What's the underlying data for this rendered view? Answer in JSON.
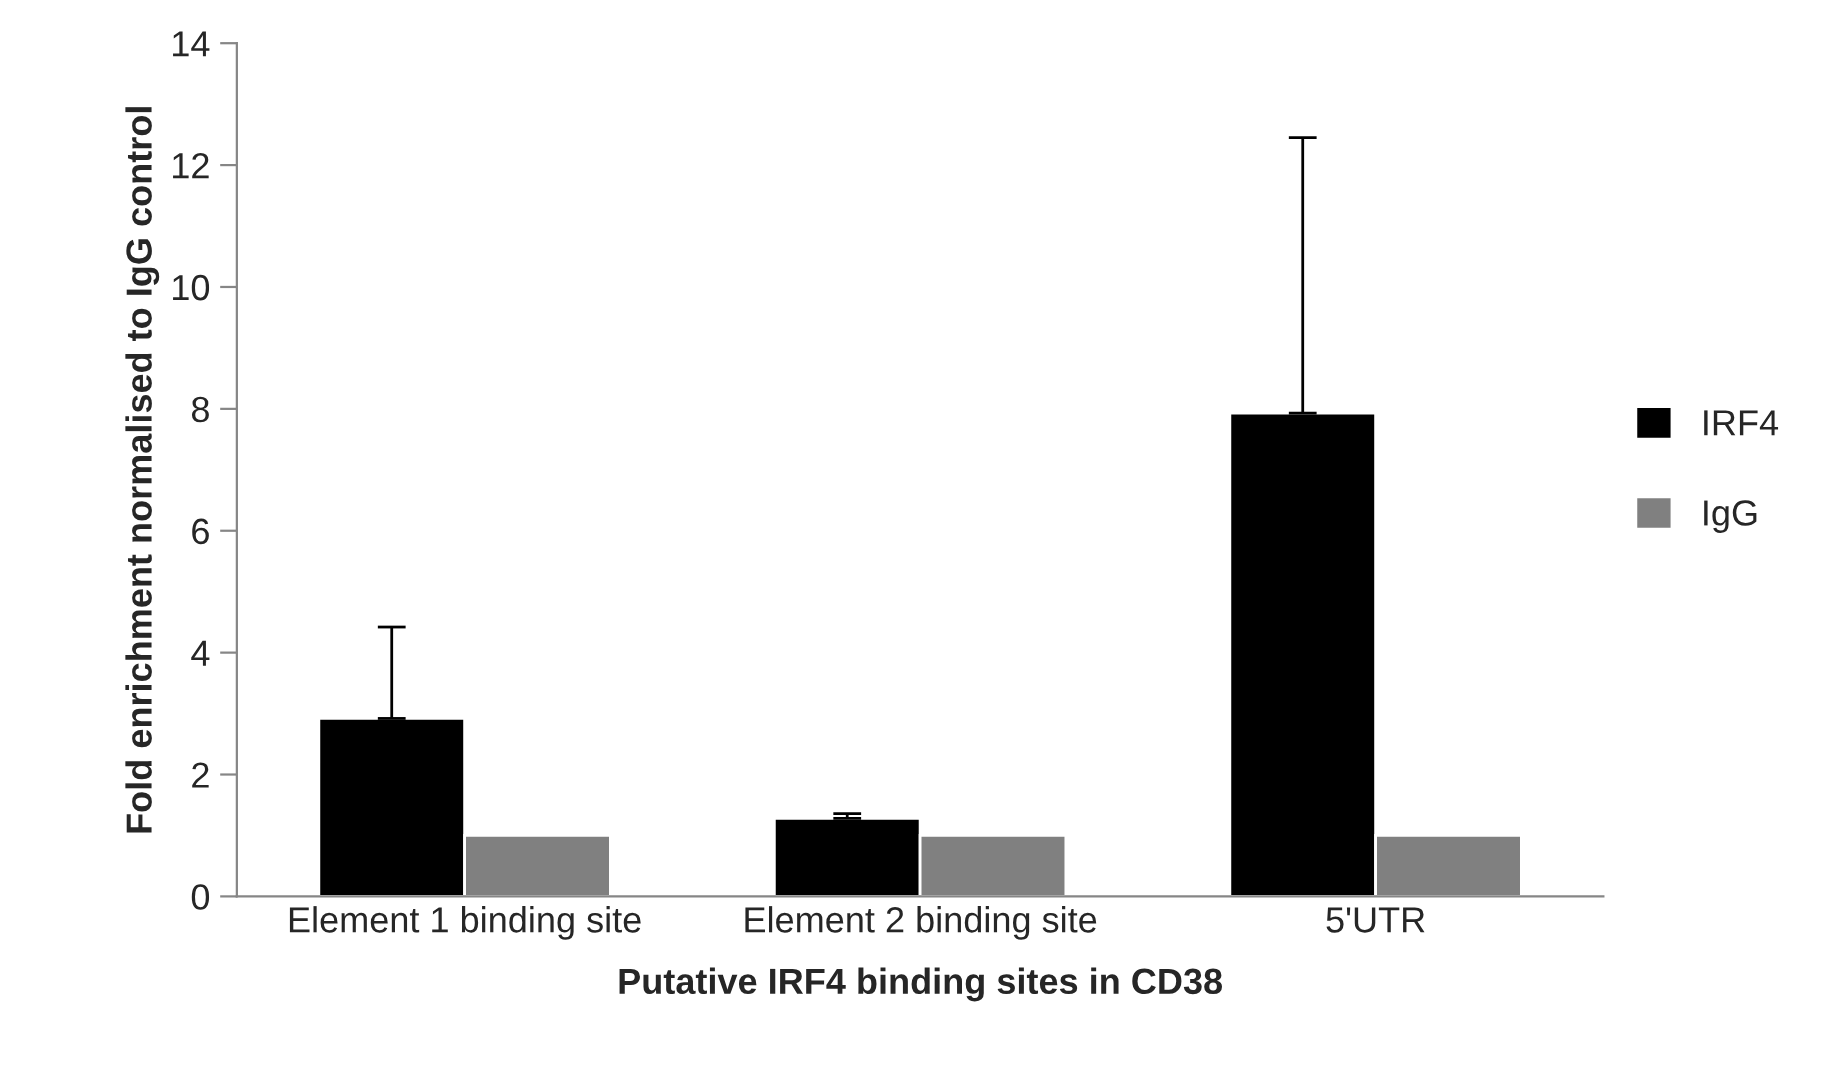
{
  "chart_data": {
    "type": "bar",
    "xlabel": "Putative IRF4 binding sites in CD38",
    "ylabel": "Fold enrichment normalised to IgG control",
    "categories": [
      "Element 1 binding site",
      "Element 2 binding site",
      "5'UTR"
    ],
    "series": [
      {
        "name": "IRF4",
        "color": "#000000",
        "values": [
          2.92,
          1.28,
          7.93
        ],
        "errors": [
          [
            2.92,
            4.42
          ],
          [
            1.28,
            1.36
          ],
          [
            7.93,
            12.45
          ]
        ]
      },
      {
        "name": "IgG",
        "color": "#808080",
        "values": [
          1,
          1,
          1
        ]
      }
    ],
    "ylim": [
      0,
      14
    ],
    "yticks": [
      0,
      2,
      4,
      6,
      8,
      10,
      12,
      14
    ],
    "grid": false,
    "legend": "right"
  }
}
